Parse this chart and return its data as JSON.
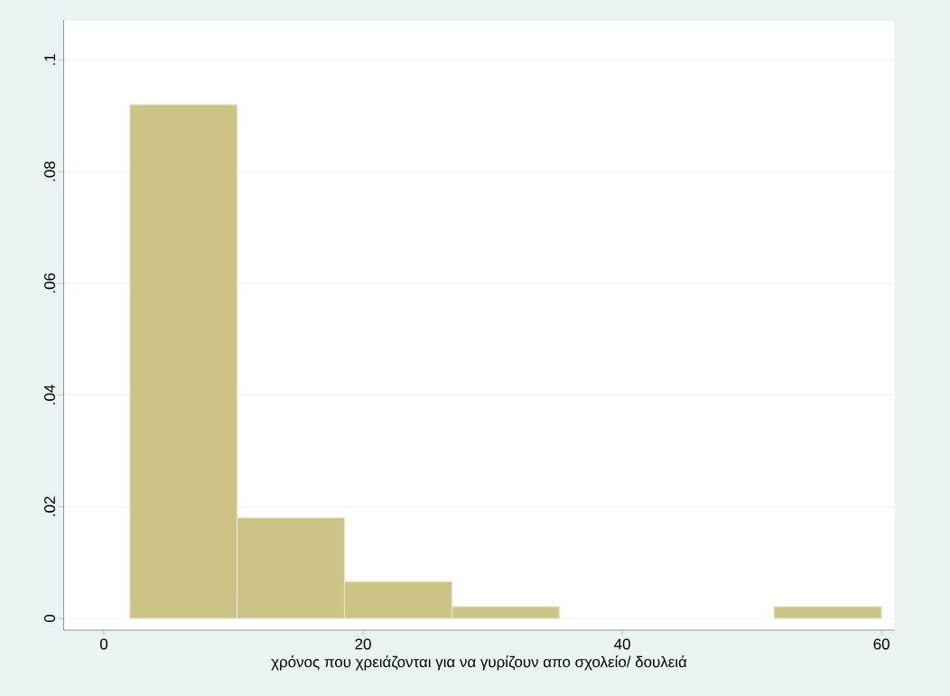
{
  "chart_data": {
    "type": "histogram",
    "xlabel": "χρόνος που χρειάζονται για να γυρίζουν απο σχολείο/ δουλειά",
    "bins": [
      2,
      10.29,
      18.57,
      26.86,
      35.14,
      43.43,
      51.71,
      60
    ],
    "values": [
      0.092,
      0.018,
      0.0066,
      0.0021,
      0,
      0,
      0.0021
    ],
    "color": "#ccc386",
    "xlim": [
      -3.1,
      61
    ],
    "ylim": [
      -0.0021,
      0.107
    ],
    "xticks": [
      0,
      20,
      40,
      60
    ],
    "yticks": [
      0,
      {
        "value": 0.02,
        "label": ".02"
      },
      {
        "value": 0.04,
        "label": ".04"
      },
      {
        "value": 0.06,
        "label": ".06"
      },
      {
        "value": 0.08,
        "label": ".08"
      },
      {
        "value": 0.1,
        "label": ".1"
      }
    ],
    "grid": "y"
  }
}
